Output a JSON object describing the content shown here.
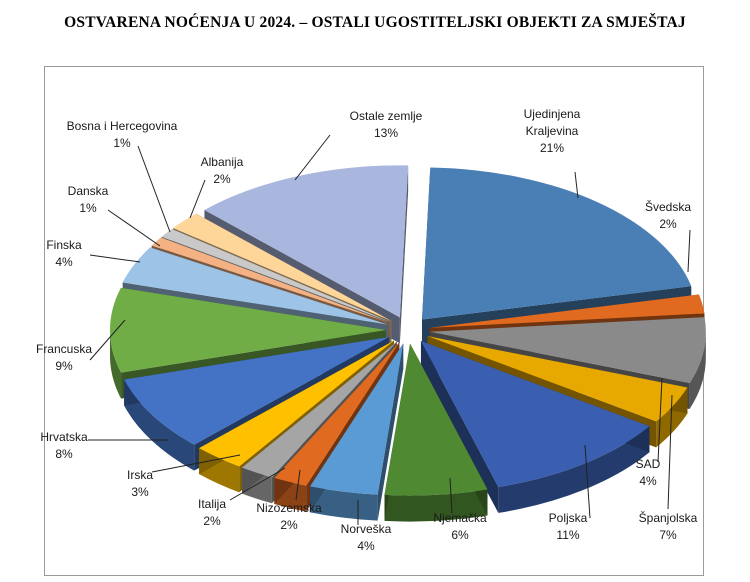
{
  "title": "OSTVARENA NOĆENJA U 2024. – OSTALI UGOSTITELJSKI OBJEKTI ZA SMJEŠTAJ",
  "chart_data": {
    "type": "pie",
    "style": "3d-exploded",
    "title": "OSTVARENA NOĆENJA U 2024. – OSTALI UGOSTITELJSKI OBJEKTI ZA SMJEŠTAJ",
    "legend": "none",
    "slices": [
      {
        "name": "Ujedinjena Kraljevina",
        "value": 21,
        "label": "21%",
        "color": "#4a7fb5"
      },
      {
        "name": "Švedska",
        "value": 2,
        "label": "2%",
        "color": "#e06a20"
      },
      {
        "name": "Španjolska",
        "value": 7,
        "label": "7%",
        "color": "#8a8a8a"
      },
      {
        "name": "SAD",
        "value": 4,
        "label": "4%",
        "color": "#e7a800"
      },
      {
        "name": "Poljska",
        "value": 11,
        "label": "11%",
        "color": "#3a5fb0"
      },
      {
        "name": "Njemačka",
        "value": 6,
        "label": "6%",
        "color": "#4f8a32"
      },
      {
        "name": "Norveška",
        "value": 4,
        "label": "4%",
        "color": "#5b9bd5"
      },
      {
        "name": "Nizozemska",
        "value": 2,
        "label": "2%",
        "color": "#e06a20"
      },
      {
        "name": "Italija",
        "value": 2,
        "label": "2%",
        "color": "#a5a5a5"
      },
      {
        "name": "Irska",
        "value": 3,
        "label": "3%",
        "color": "#ffc000"
      },
      {
        "name": "Hrvatska",
        "value": 8,
        "label": "8%",
        "color": "#4472c4"
      },
      {
        "name": "Francuska",
        "value": 9,
        "label": "9%",
        "color": "#70ad47"
      },
      {
        "name": "Finska",
        "value": 4,
        "label": "4%",
        "color": "#9dc3e6"
      },
      {
        "name": "Danska",
        "value": 1,
        "label": "1%",
        "color": "#f4b183"
      },
      {
        "name": "Bosna i Hercegovina",
        "value": 1,
        "label": "1%",
        "color": "#c9c9c9"
      },
      {
        "name": "Albanija",
        "value": 2,
        "label": "2%",
        "color": "#ffd699"
      },
      {
        "name": "Ostale zemlje",
        "value": 13,
        "label": "13%",
        "color": "#a9b7de"
      }
    ]
  }
}
